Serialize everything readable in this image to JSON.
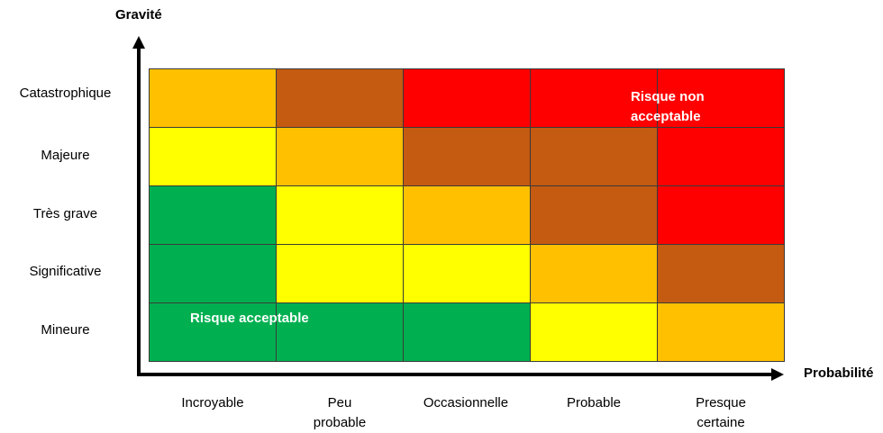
{
  "diagram": {
    "y_axis_title": "Gravité",
    "x_axis_title": "Probabilité",
    "rows": [
      "Catastrophique",
      "Majeure",
      "Très grave",
      "Significative",
      "Mineure"
    ],
    "columns": [
      {
        "line1": "Incroyable",
        "line2": ""
      },
      {
        "line1": "Peu",
        "line2": "probable"
      },
      {
        "line1": "Occasionnelle",
        "line2": ""
      },
      {
        "line1": "Probable",
        "line2": ""
      },
      {
        "line1": "Presque",
        "line2": "certaine"
      }
    ],
    "colors": {
      "green": "#00b050",
      "yellow": "#ffff00",
      "orange": "#ffc000",
      "brown": "#c55a11",
      "red": "#ff0000"
    },
    "matrix": [
      [
        "orange",
        "brown",
        "red",
        "red",
        "red"
      ],
      [
        "yellow",
        "orange",
        "brown",
        "brown",
        "red"
      ],
      [
        "green",
        "yellow",
        "orange",
        "brown",
        "red"
      ],
      [
        "green",
        "yellow",
        "yellow",
        "orange",
        "brown"
      ],
      [
        "green",
        "green",
        "green",
        "yellow",
        "orange"
      ]
    ],
    "label_non_acceptable": {
      "line1": "Risque non",
      "line2": "acceptable"
    },
    "label_acceptable": "Risque acceptable"
  }
}
